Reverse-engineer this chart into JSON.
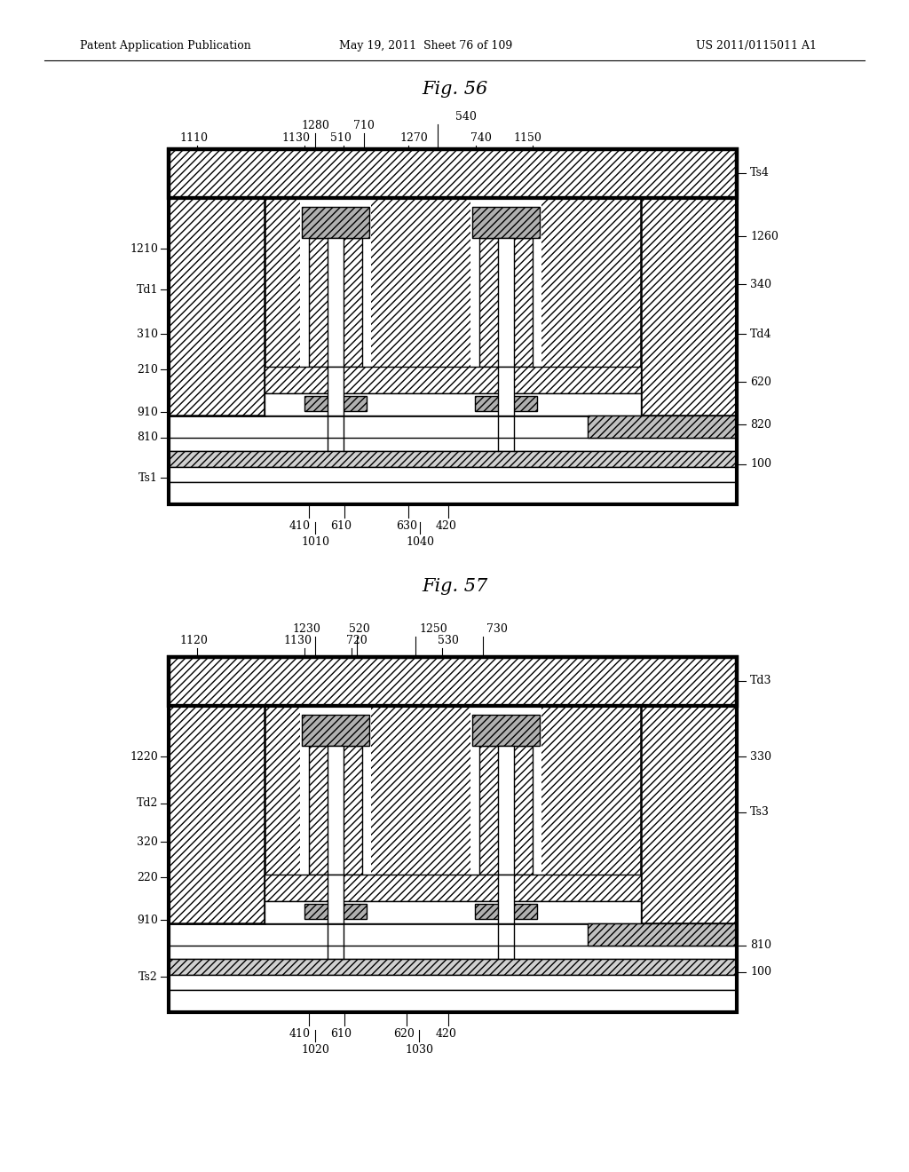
{
  "header_left": "Patent Application Publication",
  "header_mid": "May 19, 2011  Sheet 76 of 109",
  "header_right": "US 2011/0115011 A1",
  "fig56_title": "Fig. 56",
  "fig57_title": "Fig. 57",
  "bg_color": "#ffffff",
  "lc": "#000000"
}
